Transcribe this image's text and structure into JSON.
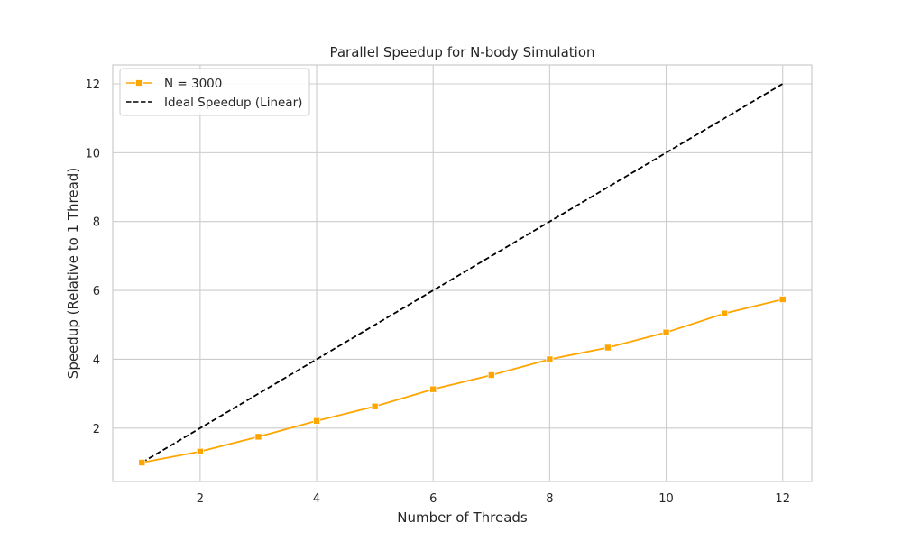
{
  "chart_data": {
    "type": "line",
    "title": "Parallel Speedup for N-body Simulation",
    "xlabel": "Number of Threads",
    "ylabel": "Speedup (Relative to 1 Thread)",
    "xlim": [
      0.5,
      12.5
    ],
    "ylim": [
      0.45,
      12.55
    ],
    "xticks": [
      2,
      4,
      6,
      8,
      10,
      12
    ],
    "yticks": [
      2,
      4,
      6,
      8,
      10,
      12
    ],
    "grid": true,
    "legend_position": "top-left",
    "series": [
      {
        "name": "N = 3000",
        "color": "#FFA500",
        "marker": "square",
        "line_style": "solid",
        "x": [
          1,
          2,
          3,
          4,
          5,
          6,
          7,
          8,
          9,
          10,
          11,
          12
        ],
        "y": [
          1.0,
          1.32,
          1.75,
          2.21,
          2.63,
          3.13,
          3.54,
          4.0,
          4.34,
          4.78,
          5.33,
          5.74
        ]
      },
      {
        "name": "Ideal Speedup (Linear)",
        "color": "#000000",
        "marker": "none",
        "line_style": "dashed",
        "x": [
          1,
          12
        ],
        "y": [
          1,
          12
        ]
      }
    ]
  }
}
